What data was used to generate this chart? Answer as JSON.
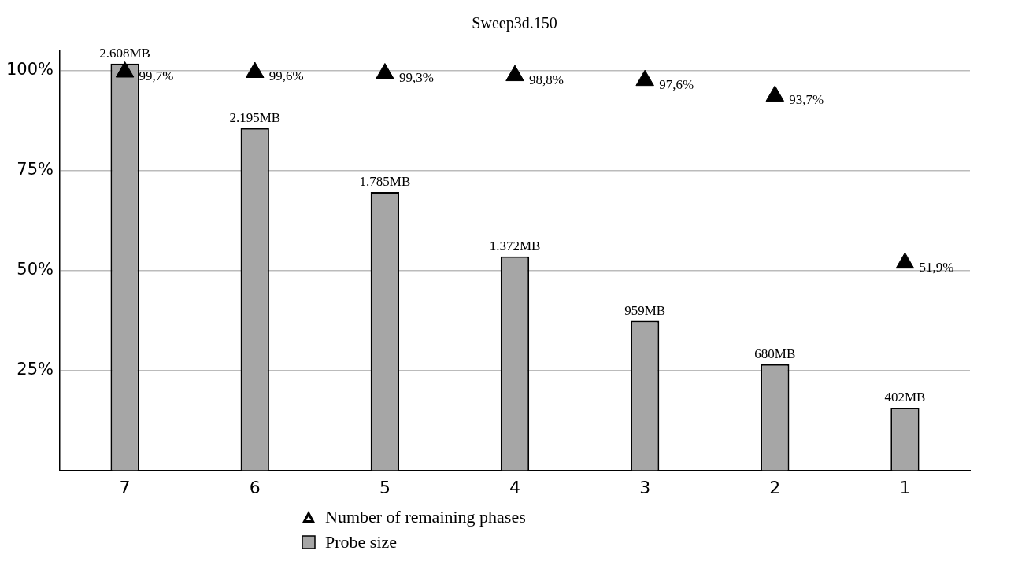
{
  "chart_data": {
    "type": "bar",
    "title": "Sweep3d.150",
    "categories": [
      "7",
      "6",
      "5",
      "4",
      "3",
      "2",
      "1"
    ],
    "series": [
      {
        "name": "Number of remaining phases",
        "type": "scatter",
        "marker": "triangle",
        "color": "#000000",
        "values": [
          99.7,
          99.6,
          99.3,
          98.8,
          97.6,
          93.7,
          51.9
        ],
        "value_labels": [
          "99,7%",
          "99,6%",
          "99,3%",
          "98,8%",
          "97,6%",
          "93,7%",
          "51,9%"
        ]
      },
      {
        "name": "Probe size",
        "axis": "y2",
        "color": "#a6a6a6",
        "values": [
          2608,
          2195,
          1785,
          1372,
          959,
          680,
          402
        ],
        "value_labels": [
          "2.608MB",
          "2.195MB",
          "1.785MB",
          "1.372MB",
          "959MB",
          "680MB",
          "402MB"
        ]
      }
    ],
    "ylim": [
      0,
      105
    ],
    "yticks": [
      {
        "value": 0,
        "label": null
      },
      {
        "value": 25,
        "label": "25%"
      },
      {
        "value": 50,
        "label": "50%"
      },
      {
        "value": 75,
        "label": "75%"
      },
      {
        "value": 100,
        "label": "100%"
      }
    ],
    "y2lim": [
      0,
      2690
    ],
    "grid": "y",
    "legend": "bottom"
  }
}
